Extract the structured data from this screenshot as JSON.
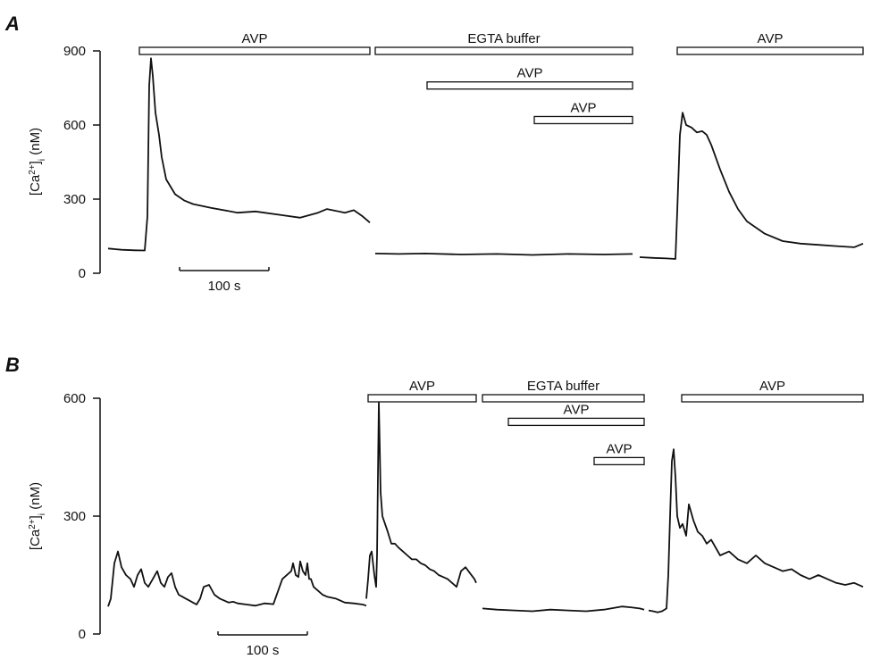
{
  "chart_data": [
    {
      "panel": "A",
      "type": "line",
      "ylabel": "[Ca2+]i (nM)",
      "ylabel_parts": {
        "base": "[Ca",
        "sup": "2+",
        "close": "]",
        "sub": "i",
        "unit": " (nM)"
      },
      "yticks": [
        0,
        300,
        600,
        900
      ],
      "ylim": [
        0,
        900
      ],
      "xlim": [
        0,
        850
      ],
      "grid": false,
      "scalebar": {
        "label": "100 s",
        "x_start": 85,
        "length_s": 100
      },
      "bars": [
        {
          "label": "AVP",
          "start": 40,
          "end": 298,
          "y": 900
        },
        {
          "label": "EGTA buffer",
          "start": 304,
          "end": 592,
          "y": 900
        },
        {
          "label": "AVP",
          "start": 362,
          "end": 592,
          "y": 760
        },
        {
          "label": "AVP",
          "start": 482,
          "end": 592,
          "y": 620
        },
        {
          "label": "AVP",
          "start": 642,
          "end": 850,
          "y": 900
        }
      ],
      "segments": [
        {
          "x": [
            5,
            20,
            35,
            46,
            49,
            51,
            53,
            55,
            58,
            62,
            65,
            70,
            80,
            90,
            100,
            120,
            150,
            170,
            200,
            220,
            240,
            250,
            270,
            280,
            290,
            298
          ],
          "y": [
            100,
            95,
            93,
            92,
            230,
            760,
            870,
            800,
            650,
            560,
            470,
            380,
            320,
            295,
            280,
            265,
            245,
            250,
            235,
            225,
            245,
            260,
            245,
            255,
            230,
            205
          ]
        },
        {
          "x": [
            304,
            330,
            360,
            400,
            440,
            480,
            520,
            560,
            592
          ],
          "y": [
            80,
            78,
            80,
            76,
            78,
            74,
            78,
            76,
            78
          ]
        },
        {
          "x": [
            600,
            615,
            630,
            640,
            642,
            645,
            648,
            652,
            658,
            664,
            670,
            675,
            680,
            690,
            700,
            710,
            720,
            740,
            760,
            780,
            800,
            820,
            840,
            850
          ],
          "y": [
            65,
            62,
            60,
            58,
            250,
            560,
            650,
            600,
            590,
            570,
            575,
            560,
            520,
            420,
            330,
            260,
            210,
            160,
            130,
            120,
            115,
            110,
            105,
            120
          ]
        }
      ]
    },
    {
      "panel": "B",
      "type": "line",
      "ylabel": "[Ca2+]i (nM)",
      "ylabel_parts": {
        "base": "[Ca",
        "sup": "2+",
        "close": "]",
        "sub": "i",
        "unit": " (nM)"
      },
      "yticks": [
        0,
        300,
        600
      ],
      "ylim": [
        0,
        600
      ],
      "xlim": [
        0,
        850
      ],
      "grid": false,
      "scalebar": {
        "label": "100 s",
        "x_start": 128,
        "length_s": 100
      },
      "bars": [
        {
          "label": "AVP",
          "start": 296,
          "end": 417,
          "y": 600
        },
        {
          "label": "EGTA buffer",
          "start": 424,
          "end": 605,
          "y": 600
        },
        {
          "label": "AVP",
          "start": 453,
          "end": 605,
          "y": 540
        },
        {
          "label": "AVP",
          "start": 549,
          "end": 605,
          "y": 440
        },
        {
          "label": "AVP",
          "start": 647,
          "end": 850,
          "y": 600
        }
      ],
      "segments": [
        {
          "x": [
            5,
            8,
            12,
            16,
            20,
            25,
            30,
            34,
            38,
            42,
            46,
            50,
            55,
            60,
            64,
            68,
            72,
            76,
            80,
            84,
            88,
            92,
            96,
            100,
            104,
            108,
            112,
            118,
            124,
            130,
            135,
            140,
            145,
            150,
            160,
            170,
            180,
            190,
            200,
            210,
            212,
            215,
            218,
            220,
            223,
            226,
            228,
            230,
            232,
            235,
            240,
            245,
            250,
            260,
            270,
            280,
            290,
            294
          ],
          "y": [
            70,
            90,
            180,
            210,
            170,
            150,
            140,
            120,
            150,
            165,
            130,
            120,
            140,
            160,
            130,
            120,
            145,
            155,
            120,
            100,
            95,
            90,
            85,
            80,
            75,
            90,
            120,
            125,
            100,
            90,
            85,
            80,
            82,
            78,
            75,
            72,
            78,
            76,
            140,
            160,
            180,
            150,
            145,
            185,
            160,
            150,
            180,
            140,
            140,
            120,
            110,
            100,
            95,
            90,
            80,
            78,
            75,
            72
          ]
        },
        {
          "x": [
            294,
            296,
            298,
            300,
            303,
            305,
            306,
            307,
            308,
            309,
            310,
            312,
            315,
            318,
            322,
            326,
            330,
            335,
            340,
            345,
            350,
            355,
            360,
            365,
            370,
            375,
            380,
            385,
            390,
            395,
            400,
            405,
            410,
            415,
            417
          ],
          "y": [
            90,
            140,
            200,
            210,
            150,
            120,
            200,
            400,
            590,
            480,
            360,
            300,
            280,
            260,
            230,
            230,
            220,
            210,
            200,
            190,
            190,
            180,
            175,
            165,
            160,
            150,
            145,
            140,
            130,
            120,
            160,
            170,
            155,
            140,
            130
          ]
        },
        {
          "x": [
            424,
            440,
            460,
            480,
            500,
            520,
            540,
            560,
            580,
            590,
            600,
            605
          ],
          "y": [
            65,
            62,
            60,
            58,
            62,
            60,
            58,
            62,
            70,
            68,
            65,
            62
          ]
        },
        {
          "x": [
            610,
            615,
            620,
            625,
            630,
            632,
            634,
            636,
            638,
            640,
            642,
            645,
            648,
            652,
            655,
            660,
            665,
            670,
            675,
            680,
            690,
            700,
            710,
            720,
            730,
            740,
            750,
            760,
            770,
            780,
            790,
            800,
            810,
            820,
            830,
            840,
            850
          ],
          "y": [
            60,
            58,
            55,
            58,
            65,
            150,
            300,
            440,
            470,
            400,
            300,
            270,
            280,
            250,
            330,
            290,
            260,
            250,
            230,
            240,
            200,
            210,
            190,
            180,
            200,
            180,
            170,
            160,
            165,
            150,
            140,
            150,
            140,
            130,
            125,
            130,
            120
          ]
        }
      ]
    }
  ]
}
